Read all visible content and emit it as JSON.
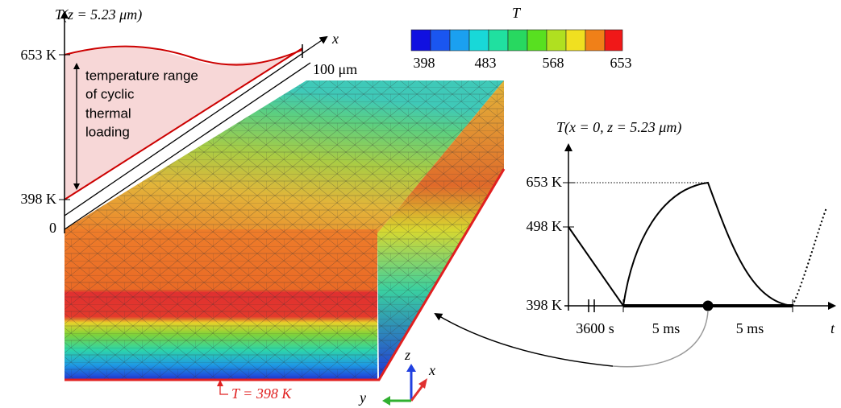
{
  "left_plot": {
    "axis_label": "T(z = 5.23 μm)",
    "ticks": [
      "653 K",
      "398 K",
      "0"
    ],
    "x_axis_label": "x",
    "x_end_label": "100 μm",
    "annotation": [
      "temperature range",
      "of cyclic",
      "thermal",
      "loading"
    ]
  },
  "colorbar": {
    "title": "T",
    "ticks": [
      "398",
      "483",
      "568",
      "653"
    ]
  },
  "right_plot": {
    "axis_label": "T(x = 0, z = 5.23 μm)",
    "y_ticks": [
      "653 K",
      "498 K",
      "398 K"
    ],
    "x_labels": [
      "3600 s",
      "5 ms",
      "5 ms"
    ],
    "x_axis_label": "t"
  },
  "boundary_label": "T = 398 K",
  "axes_triad": [
    "z",
    "x",
    "y"
  ]
}
